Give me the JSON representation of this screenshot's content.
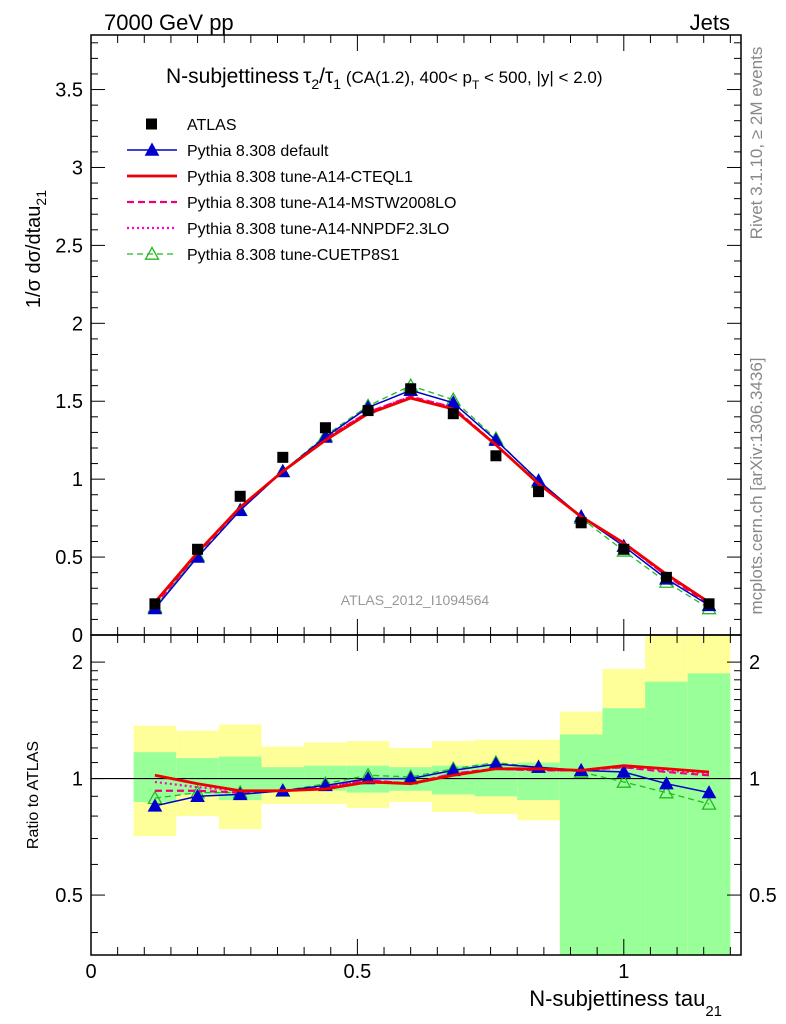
{
  "header": {
    "left": "7000 GeV pp",
    "right": "Jets"
  },
  "side": {
    "rivet": "Rivet 3.1.10, ≥ 2M events",
    "mcplots": "mcplots.cern.ch [arXiv:1306.3436]"
  },
  "title": {
    "prefix": "N-subjettiness",
    "tau2": "τ",
    "sub2": "2",
    "slash": "/",
    "tau1": "τ",
    "sub1": "1",
    "cuts1": " (CA(1.2), 400< p",
    "subT": "T",
    "cuts2": " < 500, |y| < 2.0)"
  },
  "watermark": "ATLAS_2012_I1094564",
  "axes": {
    "main_ylabel": "1/σ dσ/dtau",
    "main_ylabel_sub": "21",
    "ratio_ylabel": "Ratio to ATLAS",
    "xlabel": "N-subjettiness tau",
    "xlabel_sub": "21",
    "main_yticks": [
      "0",
      "0.5",
      "1",
      "1.5",
      "2",
      "2.5",
      "3",
      "3.5"
    ],
    "ratio_yticks": [
      "0.5",
      "1",
      "2"
    ],
    "xticks": [
      "0",
      "0.5",
      "1"
    ]
  },
  "colors": {
    "data": "#000000",
    "default": "#0000cc",
    "cteql1": "#ee0000",
    "mstw": "#ee0077",
    "nnpdf": "#ff00cc",
    "cuetp8s1": "#22bb22",
    "band_inner": "#99ff99",
    "band_outer": "#ffff99"
  },
  "chart_data": {
    "type": "line",
    "xlim": [
      0,
      1.22
    ],
    "ylim": [
      0,
      3.85
    ],
    "ratio_ylim": [
      0.35,
      2.35
    ],
    "ratio_scale": "log",
    "legend_position": "top-left",
    "bin_edges": [
      0.08,
      0.16,
      0.24,
      0.32,
      0.4,
      0.48,
      0.56,
      0.64,
      0.72,
      0.8,
      0.88,
      0.96,
      1.04,
      1.12,
      1.2
    ],
    "x": [
      0.12,
      0.2,
      0.28,
      0.36,
      0.44,
      0.52,
      0.6,
      0.68,
      0.76,
      0.84,
      0.92,
      1.0,
      1.08,
      1.16
    ],
    "data": {
      "name": "ATLAS",
      "values": [
        0.2,
        0.55,
        0.89,
        1.14,
        1.33,
        1.44,
        1.58,
        1.42,
        1.15,
        0.92,
        0.72,
        0.55,
        0.37,
        0.2
      ]
    },
    "bands": {
      "inner_low": [
        0.87,
        0.91,
        0.88,
        0.93,
        0.93,
        0.92,
        0.93,
        0.91,
        0.9,
        0.88,
        0.35,
        0.35,
        0.35,
        0.35
      ],
      "inner_high": [
        1.17,
        1.13,
        1.14,
        1.07,
        1.08,
        1.08,
        1.07,
        1.08,
        1.09,
        1.1,
        1.3,
        1.52,
        1.78,
        1.87
      ],
      "outer_low": [
        0.71,
        0.8,
        0.74,
        0.86,
        0.86,
        0.84,
        0.87,
        0.82,
        0.81,
        0.78,
        0.35,
        0.35,
        0.35,
        0.35
      ],
      "outer_high": [
        1.37,
        1.33,
        1.38,
        1.21,
        1.24,
        1.25,
        1.2,
        1.25,
        1.26,
        1.26,
        1.49,
        1.92,
        2.35,
        2.35
      ]
    },
    "series": [
      {
        "name": "Pythia 8.308 default",
        "key": "default",
        "marker": "triangle-filled",
        "values": [
          0.17,
          0.5,
          0.8,
          1.05,
          1.27,
          1.46,
          1.57,
          1.49,
          1.25,
          0.99,
          0.76,
          0.57,
          0.36,
          0.19
        ],
        "ratio": [
          0.85,
          0.9,
          0.91,
          0.93,
          0.96,
          1.0,
          1.0,
          1.05,
          1.09,
          1.07,
          1.05,
          1.04,
          0.97,
          0.92
        ]
      },
      {
        "name": "Pythia 8.308 tune-A14-CTEQL1",
        "key": "cteql1",
        "marker": "none",
        "values": [
          0.21,
          0.53,
          0.82,
          1.05,
          1.25,
          1.42,
          1.52,
          1.45,
          1.22,
          0.97,
          0.76,
          0.59,
          0.39,
          0.21
        ],
        "ratio": [
          1.02,
          0.97,
          0.93,
          0.93,
          0.94,
          0.98,
          0.97,
          1.02,
          1.06,
          1.06,
          1.05,
          1.08,
          1.06,
          1.04
        ]
      },
      {
        "name": "Pythia 8.308 tune-A14-MSTW2008LO",
        "key": "mstw",
        "marker": "none",
        "values": [
          0.19,
          0.52,
          0.82,
          1.05,
          1.26,
          1.43,
          1.53,
          1.46,
          1.22,
          0.97,
          0.76,
          0.59,
          0.38,
          0.2
        ],
        "ratio": [
          0.93,
          0.93,
          0.92,
          0.93,
          0.95,
          0.99,
          0.97,
          1.03,
          1.06,
          1.05,
          1.05,
          1.07,
          1.04,
          1.02
        ]
      },
      {
        "name": "Pythia 8.308 tune-A14-NNPDF2.3LO",
        "key": "nnpdf",
        "marker": "none",
        "values": [
          0.2,
          0.53,
          0.82,
          1.05,
          1.26,
          1.43,
          1.53,
          1.46,
          1.22,
          0.97,
          0.76,
          0.59,
          0.38,
          0.21
        ],
        "ratio": [
          0.98,
          0.95,
          0.93,
          0.93,
          0.95,
          0.99,
          0.97,
          1.03,
          1.06,
          1.05,
          1.05,
          1.07,
          1.05,
          1.03
        ]
      },
      {
        "name": "Pythia 8.308 tune-CUETP8S1",
        "key": "cuetp8s1",
        "marker": "triangle-open",
        "values": [
          0.18,
          0.51,
          0.8,
          1.05,
          1.28,
          1.47,
          1.6,
          1.51,
          1.26,
          0.98,
          0.75,
          0.54,
          0.34,
          0.17
        ],
        "ratio": [
          0.89,
          0.92,
          0.92,
          0.93,
          0.97,
          1.02,
          1.01,
          1.06,
          1.1,
          1.07,
          1.04,
          0.98,
          0.92,
          0.86
        ]
      }
    ]
  }
}
